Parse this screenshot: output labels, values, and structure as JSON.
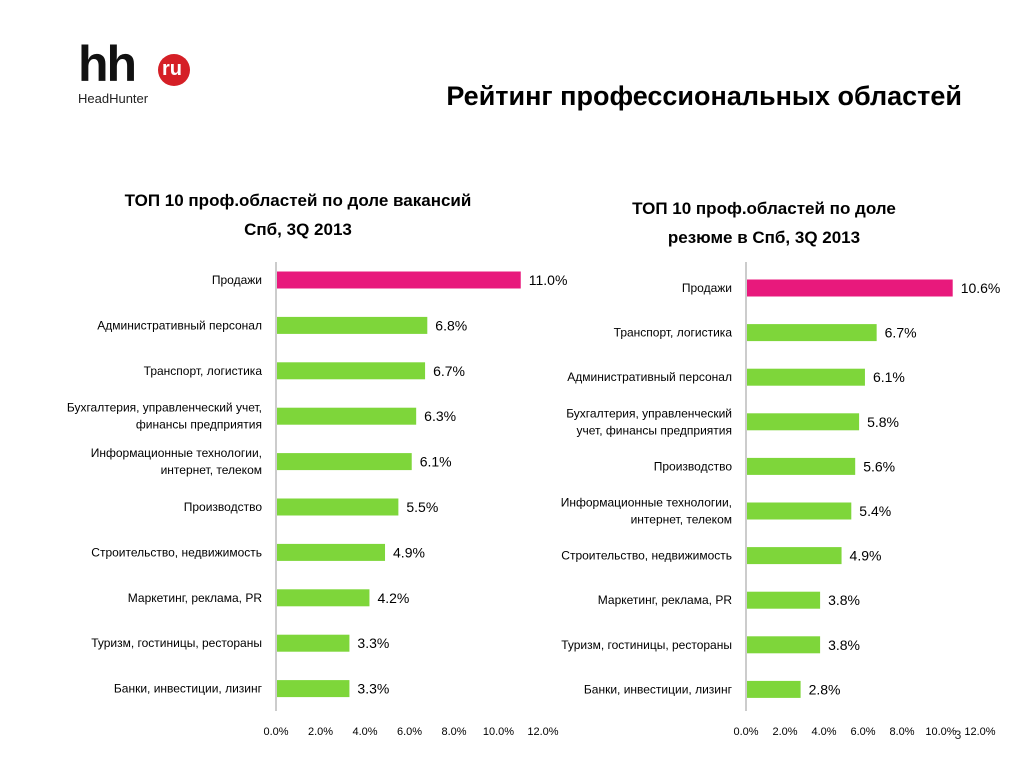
{
  "header": {
    "title": "Рейтинг профессиональных областей",
    "logo": {
      "mark": "hh",
      "badge": "ru",
      "subtitle": "HeadHunter",
      "badge_color": "#d51f26"
    }
  },
  "page_number": "3",
  "colors": {
    "highlight_bar": "#e8197c",
    "bar": "#7ed63a",
    "axis": "#999999"
  },
  "chart_data": [
    {
      "type": "bar",
      "orientation": "horizontal",
      "title": "ТОП 10 проф.областей по доле вакансий",
      "subtitle": "Спб, 3Q 2013",
      "xlim": [
        0,
        12
      ],
      "x_ticks": [
        "0.0%",
        "2.0%",
        "4.0%",
        "6.0%",
        "8.0%",
        "10.0%",
        "12.0%"
      ],
      "unit": "%",
      "highlight_index": 0,
      "categories": [
        [
          "Продажи"
        ],
        [
          "Административный персонал"
        ],
        [
          "Транспорт, логистика"
        ],
        [
          "Бухгалтерия, управленческий учет,",
          "финансы предприятия"
        ],
        [
          "Информационные технологии,",
          "интернет, телеком"
        ],
        [
          "Производство"
        ],
        [
          "Строительство, недвижимость"
        ],
        [
          "Маркетинг, реклама, PR"
        ],
        [
          "Туризм, гостиницы, рестораны"
        ],
        [
          "Банки, инвестиции, лизинг"
        ]
      ],
      "values": [
        11.0,
        6.8,
        6.7,
        6.3,
        6.1,
        5.5,
        4.9,
        4.2,
        3.3,
        3.3
      ],
      "data_labels": [
        "11.0%",
        "6.8%",
        "6.7%",
        "6.3%",
        "6.1%",
        "5.5%",
        "4.9%",
        "4.2%",
        "3.3%",
        "3.3%"
      ],
      "grid": false,
      "legend": "none"
    },
    {
      "type": "bar",
      "orientation": "horizontal",
      "title": "ТОП 10 проф.областей по доле",
      "subtitle": "резюме в Спб, 3Q 2013",
      "xlim": [
        0,
        12
      ],
      "x_ticks": [
        "0.0%",
        "2.0%",
        "4.0%",
        "6.0%",
        "8.0%",
        "10.0%",
        "12.0%"
      ],
      "unit": "%",
      "highlight_index": 0,
      "categories": [
        [
          "Продажи"
        ],
        [
          "Транспорт, логистика"
        ],
        [
          "Административный персонал"
        ],
        [
          "Бухгалтерия, управленческий",
          "учет, финансы предприятия"
        ],
        [
          "Производство"
        ],
        [
          "Информационные технологии,",
          "интернет, телеком"
        ],
        [
          "Строительство, недвижимость"
        ],
        [
          "Маркетинг, реклама, PR"
        ],
        [
          "Туризм, гостиницы, рестораны"
        ],
        [
          "Банки, инвестиции, лизинг"
        ]
      ],
      "values": [
        10.6,
        6.7,
        6.1,
        5.8,
        5.6,
        5.4,
        4.9,
        3.8,
        3.8,
        2.8
      ],
      "data_labels": [
        "10.6%",
        "6.7%",
        "6.1%",
        "5.8%",
        "5.6%",
        "5.4%",
        "4.9%",
        "3.8%",
        "3.8%",
        "2.8%"
      ],
      "grid": false,
      "legend": "none"
    }
  ]
}
